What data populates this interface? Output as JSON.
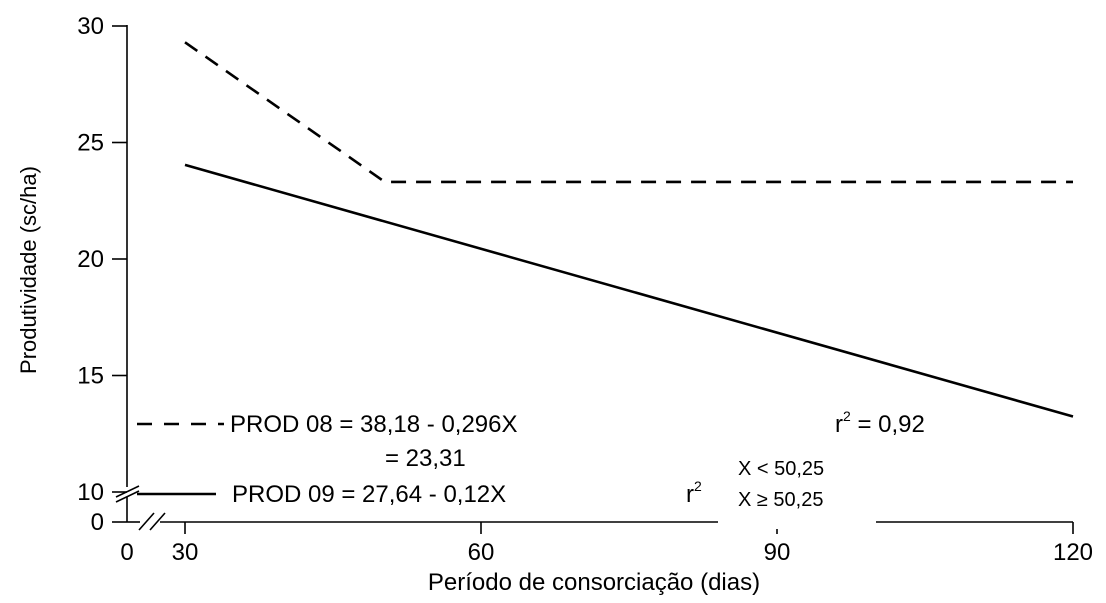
{
  "chart_data": {
    "type": "line",
    "title": "",
    "xlabel": "Período de consorciação (dias)",
    "ylabel": "Produtividade (sc/ha)",
    "xlim": [
      0,
      120
    ],
    "ylim": [
      0,
      30
    ],
    "x_ticks": [
      "0",
      "30",
      "60",
      "90",
      "120"
    ],
    "y_ticks": [
      "0",
      "10",
      "15",
      "20",
      "25",
      "30"
    ],
    "grid": false,
    "axis_break": true,
    "series": [
      {
        "style": "dashed",
        "color": "#000000",
        "x": [
          30,
          50.25,
          120
        ],
        "y": [
          29.3,
          23.31,
          23.31
        ]
      },
      {
        "style": "solid",
        "color": "#000000",
        "x": [
          30,
          120
        ],
        "y": [
          24.04,
          13.24
        ]
      }
    ],
    "legend": {
      "placement": "bottom-left",
      "entries": [
        {
          "style": "dashed",
          "equation": "PROD 08 = 38,18 - 0,296X",
          "equation2": "= 23,31",
          "r2_label": "r",
          "r2_sup": "2",
          "r2_value": " = 0,92"
        },
        {
          "style": "solid",
          "equation": "PROD 09 = 27,64 - 0,12X",
          "r2_label": "r",
          "r2_sup": "2"
        }
      ],
      "conditions": [
        "X < 50,25",
        "X ≥ 50,25"
      ]
    }
  }
}
